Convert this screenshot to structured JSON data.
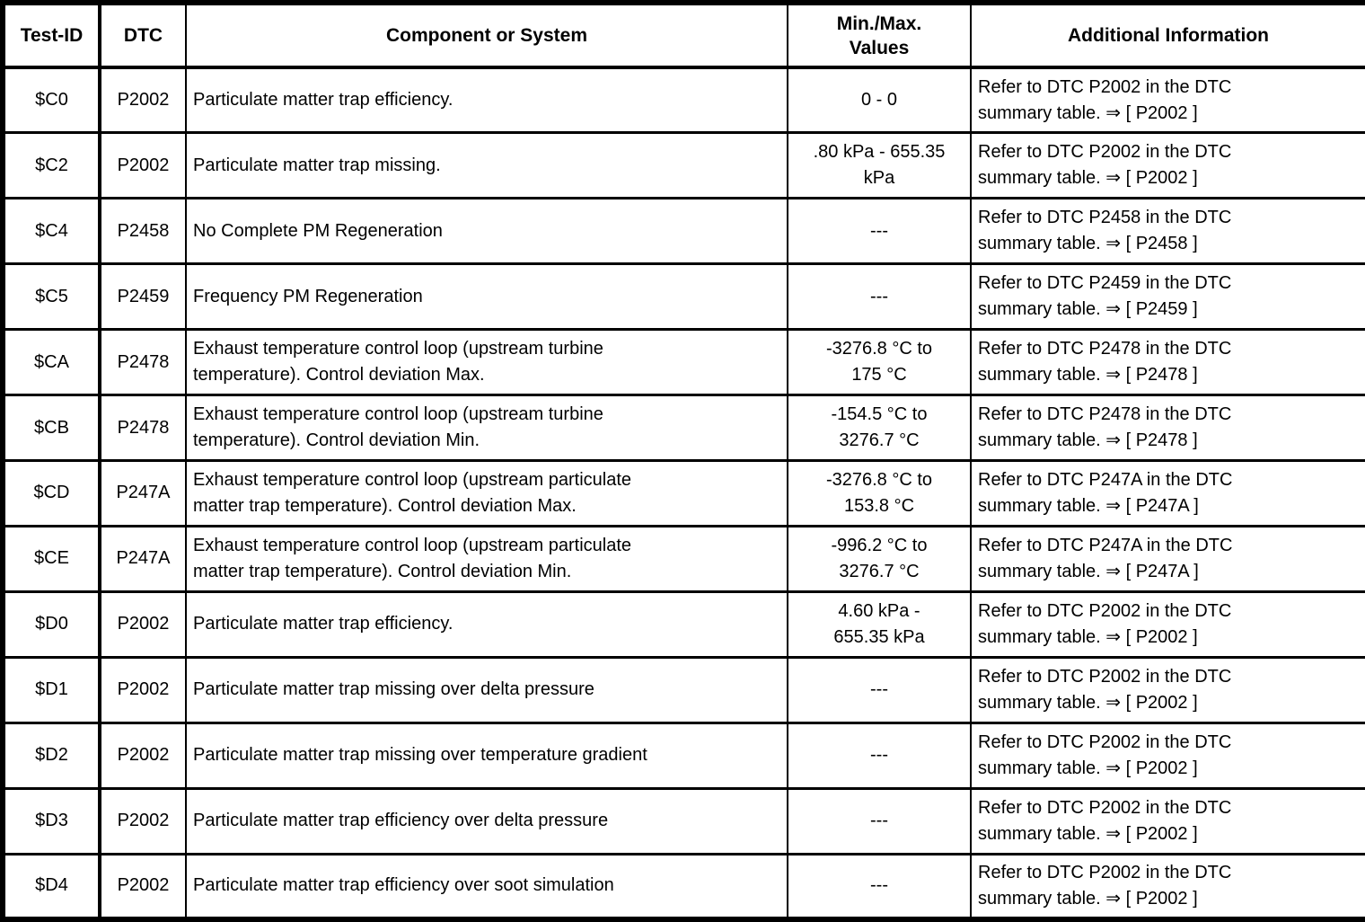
{
  "colors": {
    "background": "#ffffff",
    "border": "#000000",
    "text": "#000000"
  },
  "table": {
    "columns": [
      {
        "label": "Test-ID"
      },
      {
        "label": "DTC"
      },
      {
        "label": "Component or System"
      },
      {
        "label": "Min./Max.\nValues"
      },
      {
        "label": "Additional Information"
      }
    ],
    "rows": [
      {
        "test_id": "$C0",
        "dtc": "P2002",
        "component": "Particulate matter trap efficiency.",
        "min_max": "0 - 0",
        "info_text": "Refer to DTC P2002 in the DTC\nsummary table. ⇒ ",
        "info_ref": "[ P2002 ]"
      },
      {
        "test_id": "$C2",
        "dtc": "P2002",
        "component": "Particulate matter trap missing.",
        "min_max": ".80 kPa - 655.35\nkPa",
        "info_text": "Refer to DTC P2002 in the DTC\nsummary table. ⇒ ",
        "info_ref": "[ P2002 ]"
      },
      {
        "test_id": "$C4",
        "dtc": "P2458",
        "component": "No Complete PM Regeneration",
        "min_max": "---",
        "info_text": "Refer to DTC P2458 in the DTC\nsummary table. ⇒ ",
        "info_ref": "[ P2458 ]"
      },
      {
        "test_id": "$C5",
        "dtc": "P2459",
        "component": "Frequency PM Regeneration",
        "min_max": "---",
        "info_text": "Refer to DTC P2459 in the DTC\nsummary table. ⇒ ",
        "info_ref": "[ P2459 ]"
      },
      {
        "test_id": "$CA",
        "dtc": "P2478",
        "component": "Exhaust temperature control loop (upstream turbine\ntemperature). Control deviation Max.",
        "min_max": "-3276.8 °C to\n175 °C",
        "info_text": "Refer to DTC P2478 in the DTC\nsummary table. ⇒ ",
        "info_ref": "[ P2478 ]"
      },
      {
        "test_id": "$CB",
        "dtc": "P2478",
        "component": "Exhaust temperature control loop (upstream turbine\ntemperature). Control deviation Min.",
        "min_max": "-154.5 °C to\n3276.7 °C",
        "info_text": "Refer to DTC P2478 in the DTC\nsummary table. ⇒ ",
        "info_ref": "[ P2478 ]"
      },
      {
        "test_id": "$CD",
        "dtc": "P247A",
        "component": "Exhaust temperature control loop (upstream particulate\nmatter trap temperature). Control deviation Max.",
        "min_max": "-3276.8 °C to\n153.8 °C",
        "info_text": "Refer to DTC P247A in the DTC\nsummary table. ⇒ ",
        "info_ref": "[ P247A ]"
      },
      {
        "test_id": "$CE",
        "dtc": "P247A",
        "component": "Exhaust temperature control loop (upstream particulate\nmatter trap temperature). Control deviation Min.",
        "min_max": "-996.2 °C to\n3276.7 °C",
        "info_text": "Refer to DTC P247A in the DTC\nsummary table. ⇒ ",
        "info_ref": "[ P247A ]"
      },
      {
        "test_id": "$D0",
        "dtc": "P2002",
        "component": "Particulate matter trap efficiency.",
        "min_max": "4.60 kPa -\n655.35 kPa",
        "info_text": "Refer to DTC P2002 in the DTC\nsummary table. ⇒ ",
        "info_ref": "[ P2002 ]"
      },
      {
        "test_id": "$D1",
        "dtc": "P2002",
        "component": "Particulate matter trap missing over delta pressure",
        "min_max": "---",
        "info_text": "Refer to DTC P2002 in the DTC\nsummary table. ⇒ ",
        "info_ref": "[ P2002 ]"
      },
      {
        "test_id": "$D2",
        "dtc": "P2002",
        "component": "Particulate matter trap missing over temperature gradient",
        "min_max": "---",
        "info_text": "Refer to DTC P2002 in the DTC\nsummary table. ⇒ ",
        "info_ref": "[ P2002 ]"
      },
      {
        "test_id": "$D3",
        "dtc": "P2002",
        "component": "Particulate matter trap efficiency over delta pressure",
        "min_max": "---",
        "info_text": "Refer to DTC P2002 in the DTC\nsummary table. ⇒ ",
        "info_ref": "[ P2002 ]"
      },
      {
        "test_id": "$D4",
        "dtc": "P2002",
        "component": "Particulate matter trap efficiency over soot simulation",
        "min_max": "---",
        "info_text": "Refer to DTC P2002 in the DTC\nsummary table. ⇒ ",
        "info_ref": "[ P2002 ]"
      }
    ]
  }
}
